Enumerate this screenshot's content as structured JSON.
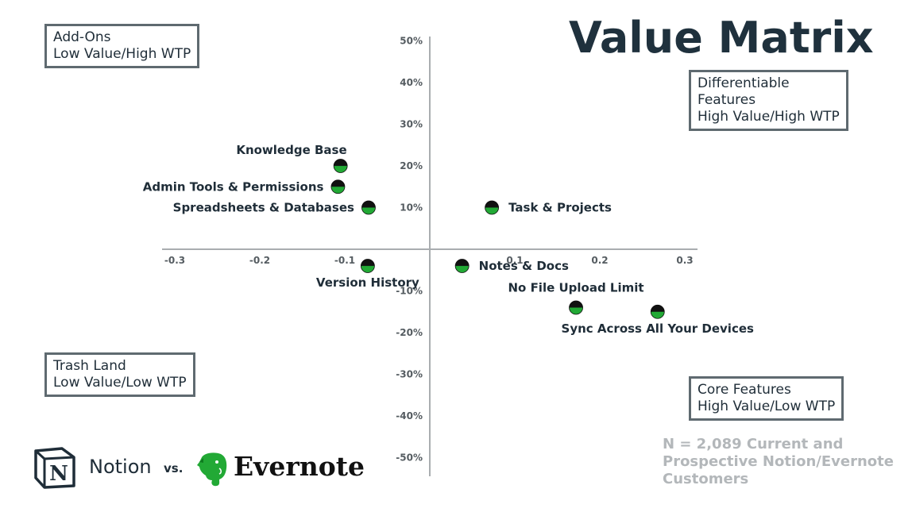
{
  "title": "Value Matrix",
  "quadrants": {
    "top_left": [
      "Add-Ons",
      "Low Value/High WTP"
    ],
    "top_right": [
      "Differentiable",
      "Features",
      "High Value/High WTP"
    ],
    "bottom_left": [
      "Trash Land",
      "Low Value/Low WTP"
    ],
    "bottom_right": [
      "Core Features",
      "High Value/Low WTP"
    ]
  },
  "sample_note": [
    "N = 2,089 Current and",
    "Prospective Notion/Evernote",
    "Customers"
  ],
  "brands": {
    "notion": "Notion",
    "vs": "vs.",
    "evernote": "Evernote"
  },
  "colors": {
    "point_top": "#111111",
    "point_bottom": "#22a935",
    "axis": "#a9adb0",
    "box_border": "#5f6a70"
  },
  "chart_data": {
    "type": "scatter",
    "xlim": [
      -0.31,
      0.31
    ],
    "ylim": [
      -0.5,
      0.5
    ],
    "x_ticks": [
      {
        "v": -0.3,
        "label": "-0.3"
      },
      {
        "v": -0.2,
        "label": "-0.2"
      },
      {
        "v": -0.1,
        "label": "-0.1"
      },
      {
        "v": 0.1,
        "label": "0.1"
      },
      {
        "v": 0.2,
        "label": "0.2"
      },
      {
        "v": 0.3,
        "label": "0.3"
      }
    ],
    "y_ticks": [
      {
        "v": 0.5,
        "label": "50%"
      },
      {
        "v": 0.4,
        "label": "40%"
      },
      {
        "v": 0.3,
        "label": "30%"
      },
      {
        "v": 0.2,
        "label": "20%"
      },
      {
        "v": 0.1,
        "label": "10%"
      },
      {
        "v": -0.1,
        "label": "-10%"
      },
      {
        "v": -0.2,
        "label": "-20%"
      },
      {
        "v": -0.3,
        "label": "-30%"
      },
      {
        "v": -0.4,
        "label": "-40%"
      },
      {
        "v": -0.5,
        "label": "-50%"
      }
    ],
    "points": [
      {
        "label": "Knowledge Base",
        "x": -0.105,
        "y": 0.2,
        "label_pos": "above-left"
      },
      {
        "label": "Admin Tools & Permissions",
        "x": -0.108,
        "y": 0.15,
        "label_pos": "left"
      },
      {
        "label": "Spreadsheets & Databases",
        "x": -0.072,
        "y": 0.1,
        "label_pos": "left"
      },
      {
        "label": "Task & Projects",
        "x": 0.073,
        "y": 0.1,
        "label_pos": "right"
      },
      {
        "label": "Version History",
        "x": -0.073,
        "y": -0.04,
        "label_pos": "below"
      },
      {
        "label": "Notes & Docs",
        "x": 0.038,
        "y": -0.04,
        "label_pos": "right"
      },
      {
        "label": "No File Upload Limit",
        "x": 0.172,
        "y": -0.14,
        "label_pos": "above"
      },
      {
        "label": "Sync Across All Your Devices",
        "x": 0.268,
        "y": -0.15,
        "label_pos": "below"
      }
    ],
    "grid": false,
    "legend": "none"
  }
}
